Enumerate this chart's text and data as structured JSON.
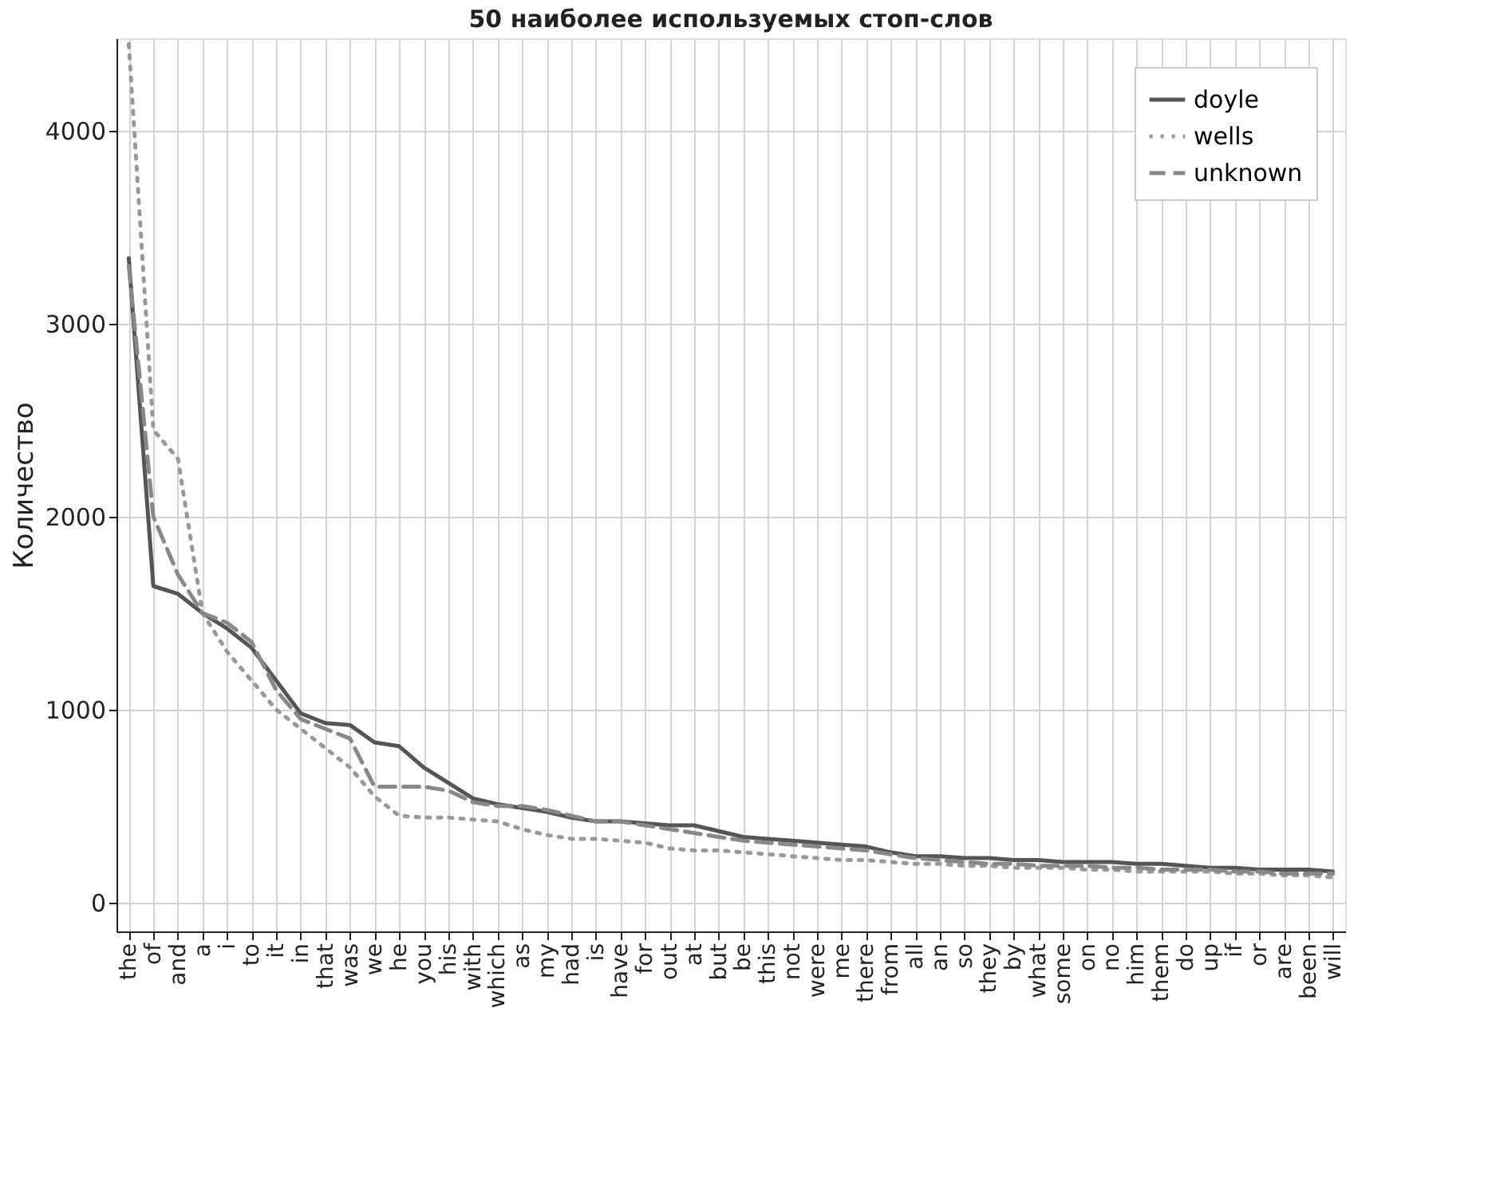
{
  "chart_data": {
    "type": "line",
    "title": "50 наиболее используемых стоп-слов",
    "ylabel": "Количество",
    "categories": [
      "the",
      "of",
      "and",
      "a",
      "i",
      "to",
      "it",
      "in",
      "that",
      "was",
      "we",
      "he",
      "you",
      "his",
      "with",
      "which",
      "as",
      "my",
      "had",
      "is",
      "have",
      "for",
      "out",
      "at",
      "but",
      "be",
      "this",
      "not",
      "were",
      "me",
      "there",
      "from",
      "all",
      "an",
      "so",
      "they",
      "by",
      "what",
      "some",
      "on",
      "no",
      "him",
      "them",
      "do",
      "up",
      "if",
      "or",
      "are",
      "been",
      "will"
    ],
    "series": [
      {
        "name": "doyle",
        "color": "#555555",
        "line_style": "solid",
        "values": [
          3340,
          1640,
          1600,
          1500,
          1420,
          1320,
          1150,
          980,
          930,
          920,
          830,
          810,
          700,
          620,
          540,
          510,
          490,
          470,
          440,
          420,
          420,
          410,
          400,
          400,
          370,
          340,
          330,
          320,
          310,
          300,
          290,
          260,
          240,
          240,
          230,
          230,
          220,
          220,
          210,
          210,
          210,
          200,
          200,
          190,
          180,
          180,
          170,
          170,
          170,
          160
        ]
      },
      {
        "name": "wells",
        "color": "#999999",
        "line_style": "dotted",
        "values": [
          4450,
          2450,
          2300,
          1500,
          1300,
          1150,
          1000,
          900,
          800,
          700,
          550,
          450,
          440,
          440,
          430,
          420,
          380,
          350,
          330,
          330,
          320,
          310,
          280,
          270,
          270,
          260,
          250,
          240,
          230,
          220,
          220,
          210,
          200,
          200,
          190,
          190,
          180,
          180,
          180,
          170,
          170,
          160,
          160,
          160,
          160,
          150,
          150,
          140,
          140,
          130
        ]
      },
      {
        "name": "unknown",
        "color": "#888888",
        "line_style": "dashed",
        "values": [
          3300,
          2000,
          1700,
          1500,
          1450,
          1350,
          1100,
          950,
          900,
          850,
          600,
          600,
          600,
          580,
          520,
          500,
          500,
          480,
          450,
          420,
          420,
          400,
          380,
          360,
          340,
          320,
          310,
          300,
          290,
          280,
          270,
          250,
          230,
          220,
          210,
          200,
          200,
          190,
          190,
          190,
          180,
          180,
          170,
          170,
          170,
          160,
          160,
          150,
          150,
          150
        ]
      }
    ],
    "ylim": [
      -150,
      4480
    ],
    "yticks": [
      0,
      1000,
      2000,
      3000,
      4000
    ],
    "grid": true,
    "legend": "top right"
  }
}
